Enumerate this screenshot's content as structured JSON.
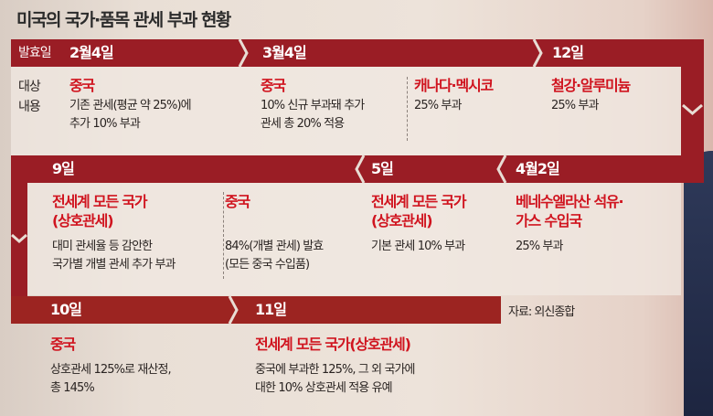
{
  "title": "미국의 국가·품목 관세 부과 현황",
  "labels": {
    "effective_date": "발효일",
    "target": "대상",
    "content": "내용"
  },
  "source": "자료: 외신종합",
  "colors": {
    "band": "#9a1d25",
    "highlight": "#d0141f"
  },
  "timeline": [
    {
      "date": "2월4일",
      "target": "중국",
      "content": "기존 관세(평균 약 25%)에\n추가 10% 부과"
    },
    {
      "date": "3월4일",
      "target": "중국",
      "content": "10% 신규 부과돼 추가\n관세 총 20% 적용"
    },
    {
      "date": "",
      "target": "캐나다·멕시코",
      "content": "25% 부과"
    },
    {
      "date": "12일",
      "target": "철강·알루미늄",
      "content": "25% 부과"
    },
    {
      "date": "4월2일",
      "target": "베네수엘라산 석유·\n가스 수입국",
      "content": "25% 부과"
    },
    {
      "date": "5일",
      "target": "전세계 모든 국가\n(상호관세)",
      "content": "기본 관세 10% 부과"
    },
    {
      "date": "9일",
      "target": "전세계 모든 국가\n(상호관세)",
      "content": "대미 관세율 등 감안한\n국가별 개별 관세 추가 부과"
    },
    {
      "date": "",
      "target": "중국",
      "content": "84%(개별 관세) 발효\n(모든 중국 수입품)"
    },
    {
      "date": "10일",
      "target": "중국",
      "content": "상호관세 125%로 재산정,\n총 145%"
    },
    {
      "date": "11일",
      "target": "전세계 모든 국가(상호관세)",
      "content": "중국에 부과한 125%, 그 외 국가에\n대한 10% 상호관세 적용 유예"
    }
  ]
}
